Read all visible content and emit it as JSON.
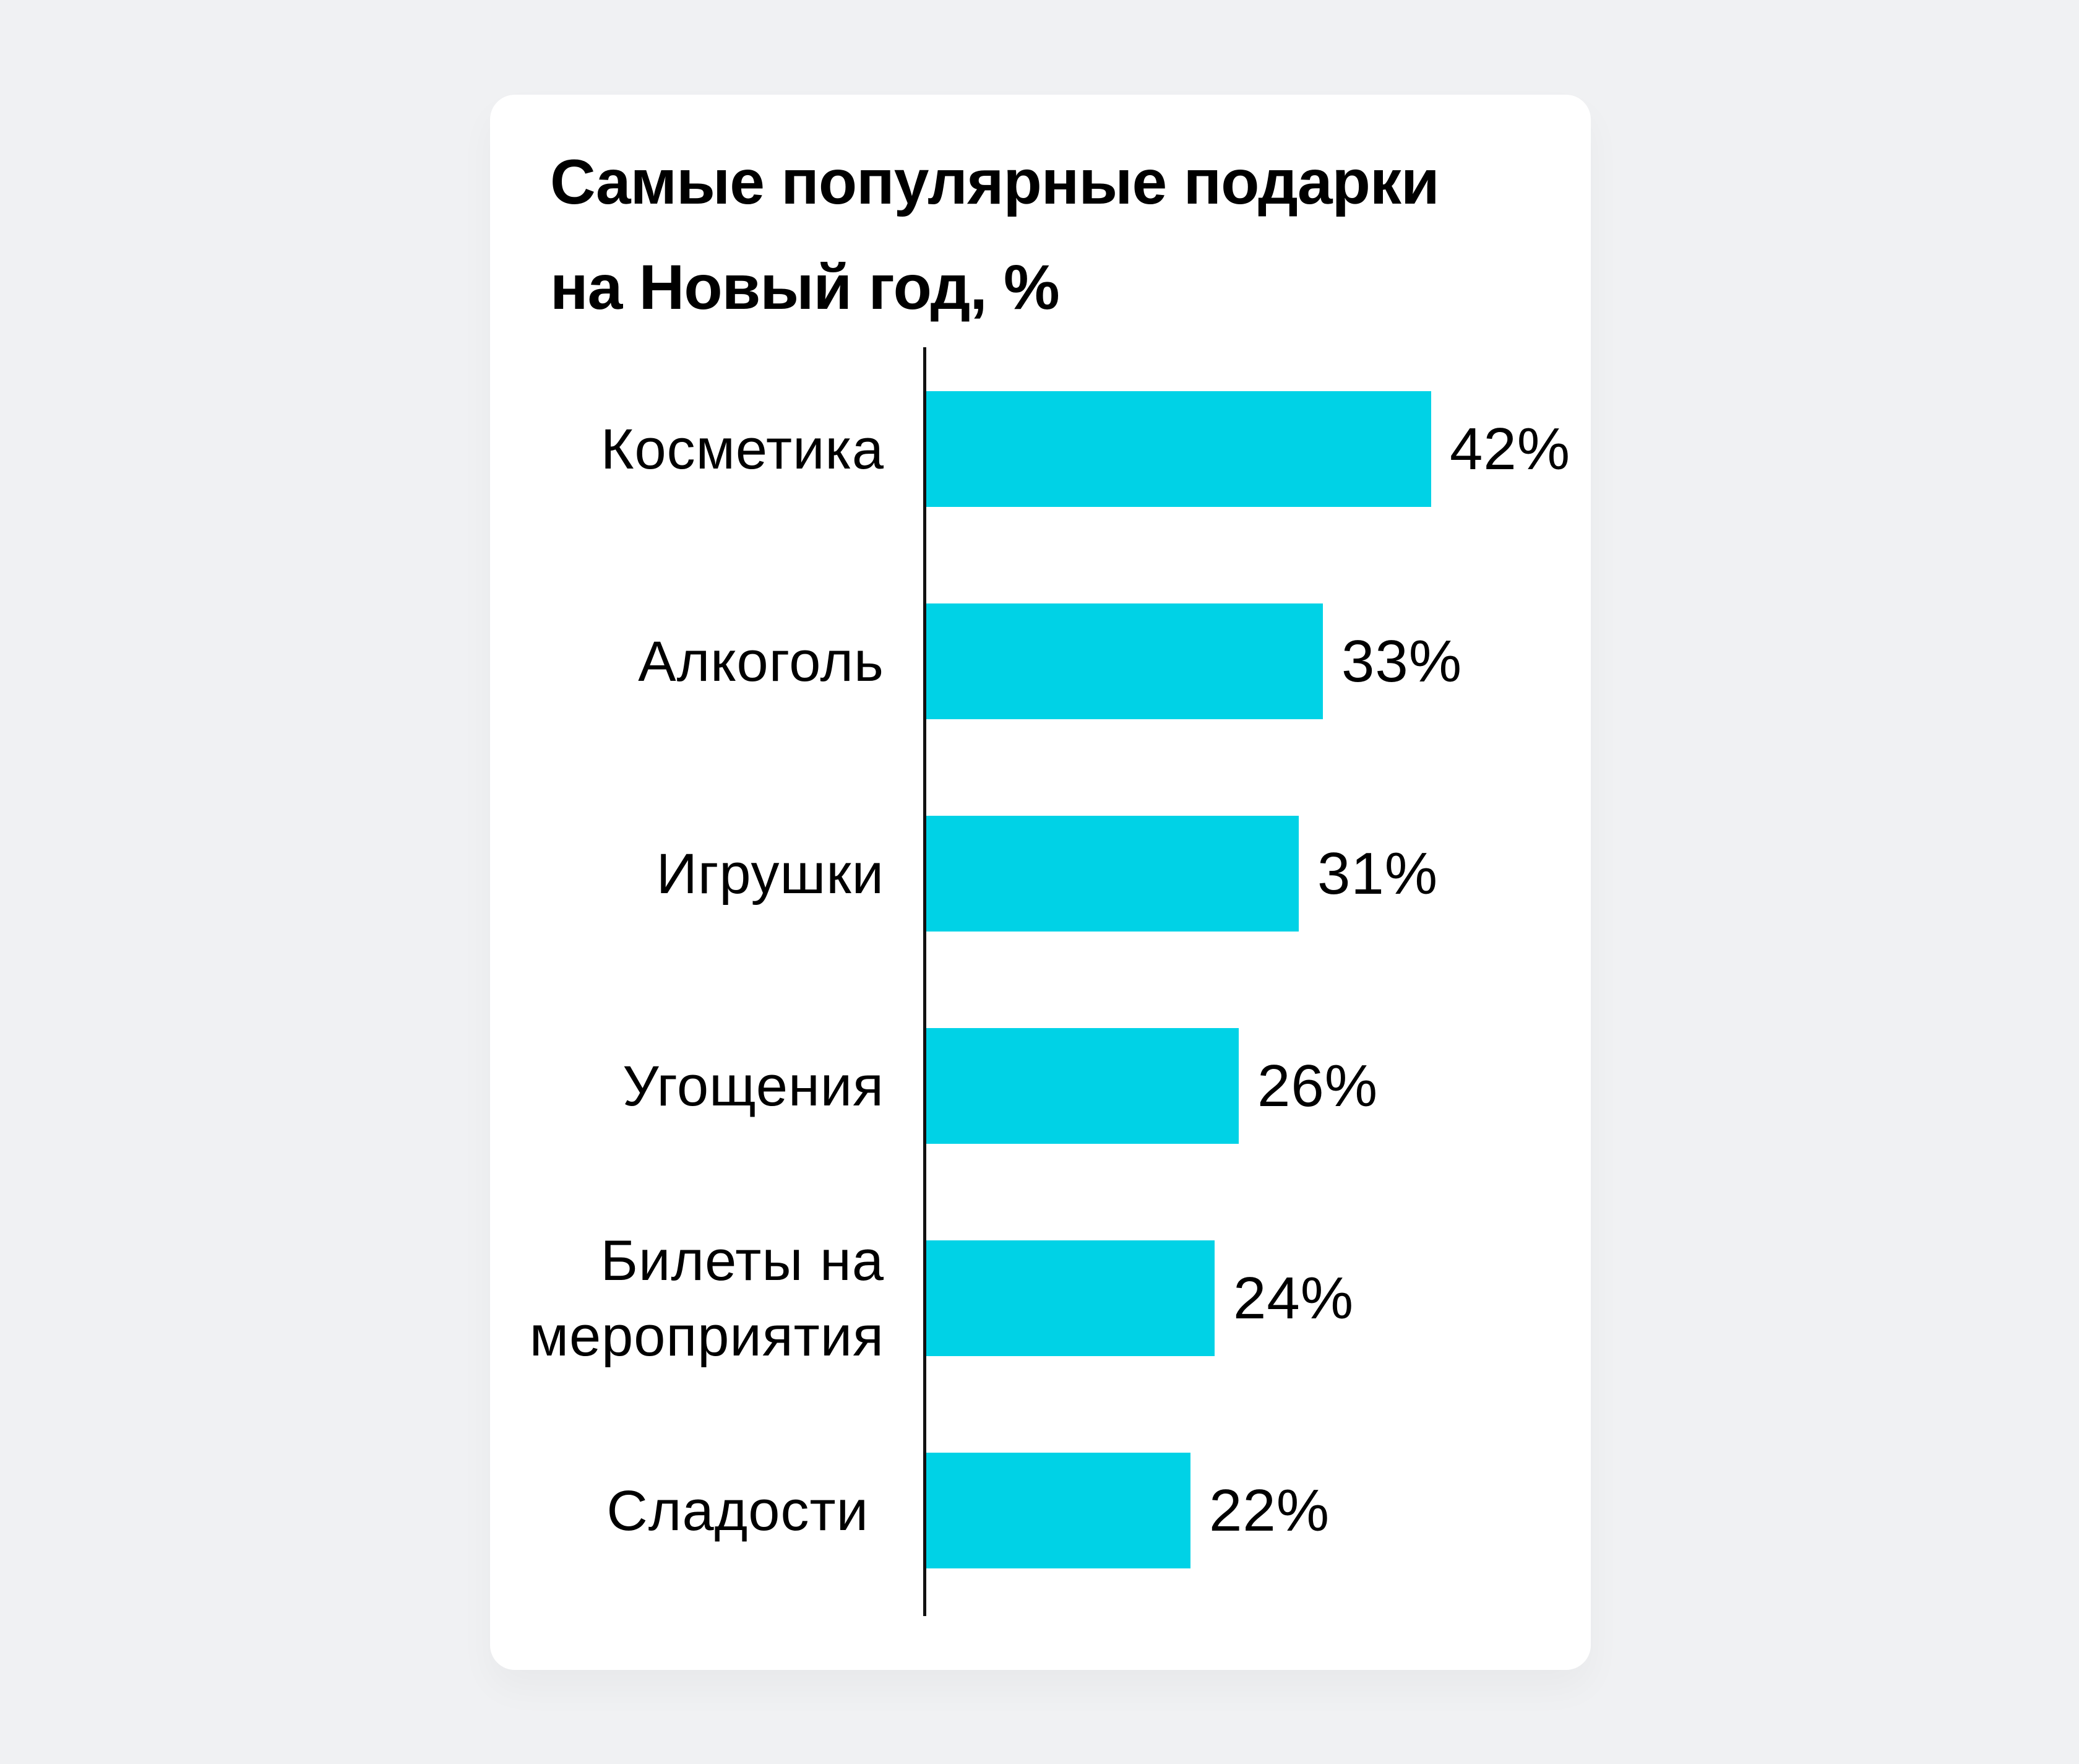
{
  "card": {
    "title_line1": "Самые популярные подарки",
    "title_line2": "на Новый год, %"
  },
  "colors": {
    "background": "#f0f1f3",
    "card": "#ffffff",
    "bar": "#00d2e6",
    "axis": "#111111",
    "text": "#000000"
  },
  "chart_data": {
    "type": "bar",
    "orientation": "horizontal",
    "title": "Самые популярные подарки на Новый год, %",
    "categories": [
      "Косметика",
      "Алкоголь",
      "Игрушки",
      "Угощения",
      "Билеты на мероприятия",
      "Сладости"
    ],
    "values": [
      42,
      33,
      31,
      26,
      24,
      22
    ],
    "value_labels": [
      "42%",
      "33%",
      "31%",
      "26%",
      "24%",
      "22%"
    ],
    "unit": "%",
    "xlabel": "",
    "ylabel": "",
    "grid": false,
    "legend": null,
    "bar_color": "#00d2e6"
  },
  "rows": [
    {
      "label": "Косметика",
      "value": 42,
      "value_label": "42%"
    },
    {
      "label": "Алкоголь",
      "value": 33,
      "value_label": "33%"
    },
    {
      "label": "Игрушки",
      "value": 31,
      "value_label": "31%"
    },
    {
      "label": "Угощения",
      "value": 26,
      "value_label": "26%"
    },
    {
      "label": "Билеты на\nмероприятия",
      "value": 24,
      "value_label": "24%"
    },
    {
      "label": "Сладости",
      "value": 22,
      "value_label": "22%"
    }
  ]
}
